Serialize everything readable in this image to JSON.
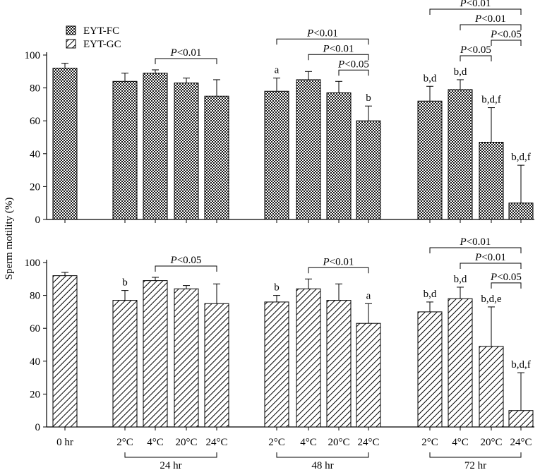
{
  "ylabel": "Sperm motility (%)",
  "legend": {
    "fc_label": "EYT-FC",
    "gc_label": "EYT-GC"
  },
  "x_categories": [
    "0 hr",
    "2°C",
    "4°C",
    "20°C",
    "24°C",
    "2°C",
    "4°C",
    "20°C",
    "24°C",
    "2°C",
    "4°C",
    "20°C",
    "24°C"
  ],
  "group_labels": [
    "24 hr",
    "48 hr",
    "72 hr"
  ],
  "chart_data": [
    {
      "type": "bar",
      "pattern": "checkered",
      "series": [
        {
          "name": "EYT-FC",
          "values": [
            92,
            84,
            89,
            83,
            75,
            78,
            85,
            77,
            60,
            72,
            79,
            47,
            10
          ]
        }
      ],
      "errors": [
        3,
        5,
        2,
        3,
        10,
        8,
        5,
        7,
        9,
        9,
        6,
        21,
        23
      ],
      "annotations": [
        "",
        "",
        "",
        "",
        "",
        "a",
        "",
        "",
        "b",
        "b,d",
        "b,d",
        "b,d,f",
        "b,d,f"
      ],
      "significance": [
        {
          "from": 2,
          "to": 4,
          "label": "P<0.01"
        },
        {
          "from": 5,
          "to": 8,
          "label": "P<0.01"
        },
        {
          "from": 6,
          "to": 8,
          "label": "P<0.01"
        },
        {
          "from": 7,
          "to": 8,
          "label": "P<0.05"
        },
        {
          "from": 9,
          "to": 12,
          "label": "P<0.01"
        },
        {
          "from": 10,
          "to": 12,
          "label": "P<0.01"
        },
        {
          "from": 10,
          "to": 11,
          "label": "P<0.05"
        },
        {
          "from": 11,
          "to": 12,
          "label": "P<0.05"
        }
      ],
      "ylim": [
        0,
        100
      ],
      "yticks": [
        0,
        20,
        40,
        60,
        80,
        100
      ]
    },
    {
      "type": "bar",
      "pattern": "hatched",
      "series": [
        {
          "name": "EYT-GC",
          "values": [
            92,
            77,
            89,
            84,
            75,
            76,
            84,
            77,
            63,
            70,
            78,
            49,
            10
          ]
        }
      ],
      "errors": [
        2,
        6,
        2,
        2,
        12,
        4,
        6,
        10,
        12,
        6,
        7,
        24,
        23
      ],
      "annotations": [
        "",
        "b",
        "",
        "",
        "",
        "b",
        "",
        "",
        "a",
        "b,d",
        "b,d",
        "b,d,e",
        "b,d,f"
      ],
      "significance": [
        {
          "from": 2,
          "to": 4,
          "label": "P<0.05"
        },
        {
          "from": 6,
          "to": 8,
          "label": "P<0.01"
        },
        {
          "from": 9,
          "to": 12,
          "label": "P<0.01"
        },
        {
          "from": 10,
          "to": 12,
          "label": "P<0.01"
        },
        {
          "from": 11,
          "to": 12,
          "label": "P<0.05"
        }
      ],
      "ylim": [
        0,
        100
      ],
      "yticks": [
        0,
        20,
        40,
        60,
        80,
        100
      ]
    }
  ]
}
